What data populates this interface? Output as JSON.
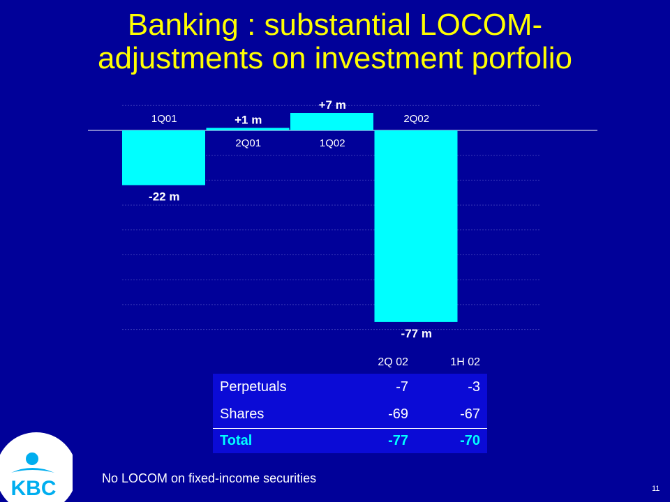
{
  "title": {
    "line1": "Banking : substantial LOCOM-",
    "line2": "adjustments on investment porfolio"
  },
  "chart_data": {
    "type": "bar",
    "categories": [
      "1Q01",
      "2Q01",
      "1Q02",
      "2Q02"
    ],
    "values": [
      -22,
      1,
      7,
      -77
    ],
    "value_labels": [
      "-22 m",
      "+1 m",
      "+7 m",
      "-77 m"
    ],
    "ylim": [
      -80,
      7
    ],
    "grid": true,
    "colors": {
      "bar": "#00ffff",
      "background": "#010199",
      "text": "#ffffff",
      "grid": "#3a3ab8"
    }
  },
  "table": {
    "columns": [
      "",
      "2Q 02",
      "1H 02"
    ],
    "rows": [
      {
        "label": "Perpetuals",
        "q2": "-7",
        "h1": "-3"
      },
      {
        "label": "Shares",
        "q2": "-69",
        "h1": "-67"
      },
      {
        "label": "Total",
        "q2": "-77",
        "h1": "-70"
      }
    ]
  },
  "footer": {
    "note": "No LOCOM on fixed-income securities",
    "page_number": "11"
  },
  "logo": {
    "text": "KBC",
    "icon": "kbc-logo-icon",
    "color": "#00aeef"
  }
}
